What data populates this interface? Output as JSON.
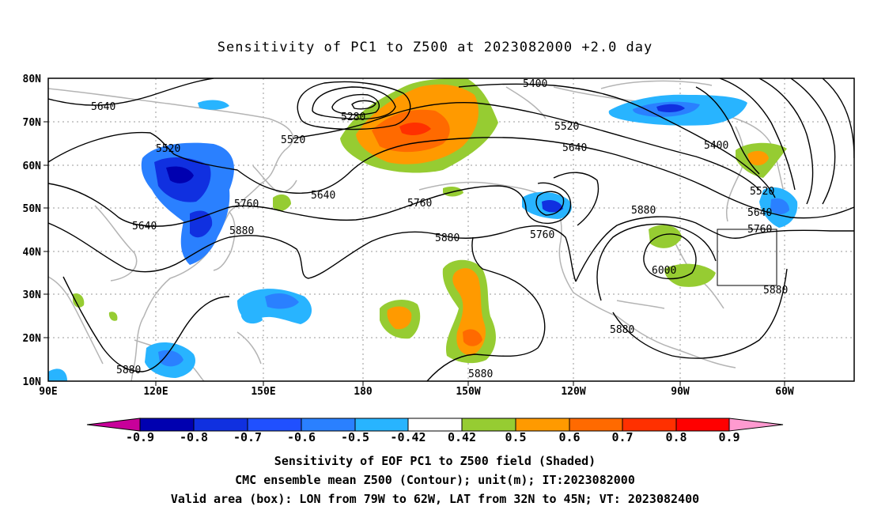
{
  "title": "Sensitivity of PC1 to Z500 at 2023082000 +2.0 day",
  "lat_ticks": [
    "80N",
    "70N",
    "60N",
    "50N",
    "40N",
    "30N",
    "20N",
    "10N"
  ],
  "lon_ticks": [
    "90E",
    "120E",
    "150E",
    "180",
    "150W",
    "120W",
    "90W",
    "60W"
  ],
  "contour_labels": [
    "5640",
    "5520",
    "5280",
    "5520",
    "5400",
    "5520",
    "5640",
    "5400",
    "5640",
    "5760",
    "5880",
    "5760",
    "5880",
    "5640",
    "5520",
    "5640",
    "5760",
    "5880",
    "6000",
    "5760",
    "5880",
    "5880",
    "5880",
    "5880"
  ],
  "colorbar": {
    "labels": [
      "-0.9",
      "-0.8",
      "-0.7",
      "-0.6",
      "-0.5",
      "-0.42",
      "0.42",
      "0.5",
      "0.6",
      "0.7",
      "0.8",
      "0.9"
    ],
    "colors": [
      "#c8009a",
      "#0000b0",
      "#1030e0",
      "#2050ff",
      "#2a80ff",
      "#28b4ff",
      "#ffffff",
      "#96cc32",
      "#ff9a00",
      "#ff6a00",
      "#ff3000",
      "#ff0000",
      "#ff9ad0"
    ]
  },
  "captions": [
    "Sensitivity of EOF PC1 to Z500 field (Shaded)",
    "CMC ensemble mean Z500 (Contour); unit(m); IT:2023082000",
    "Valid area (box): LON from 79W to 62W, LAT from 32N to 45N; VT: 2023082400"
  ],
  "valid_box": {
    "lon_from": "79W",
    "lon_to": "62W",
    "lat_from": "32N",
    "lat_to": "45N"
  }
}
